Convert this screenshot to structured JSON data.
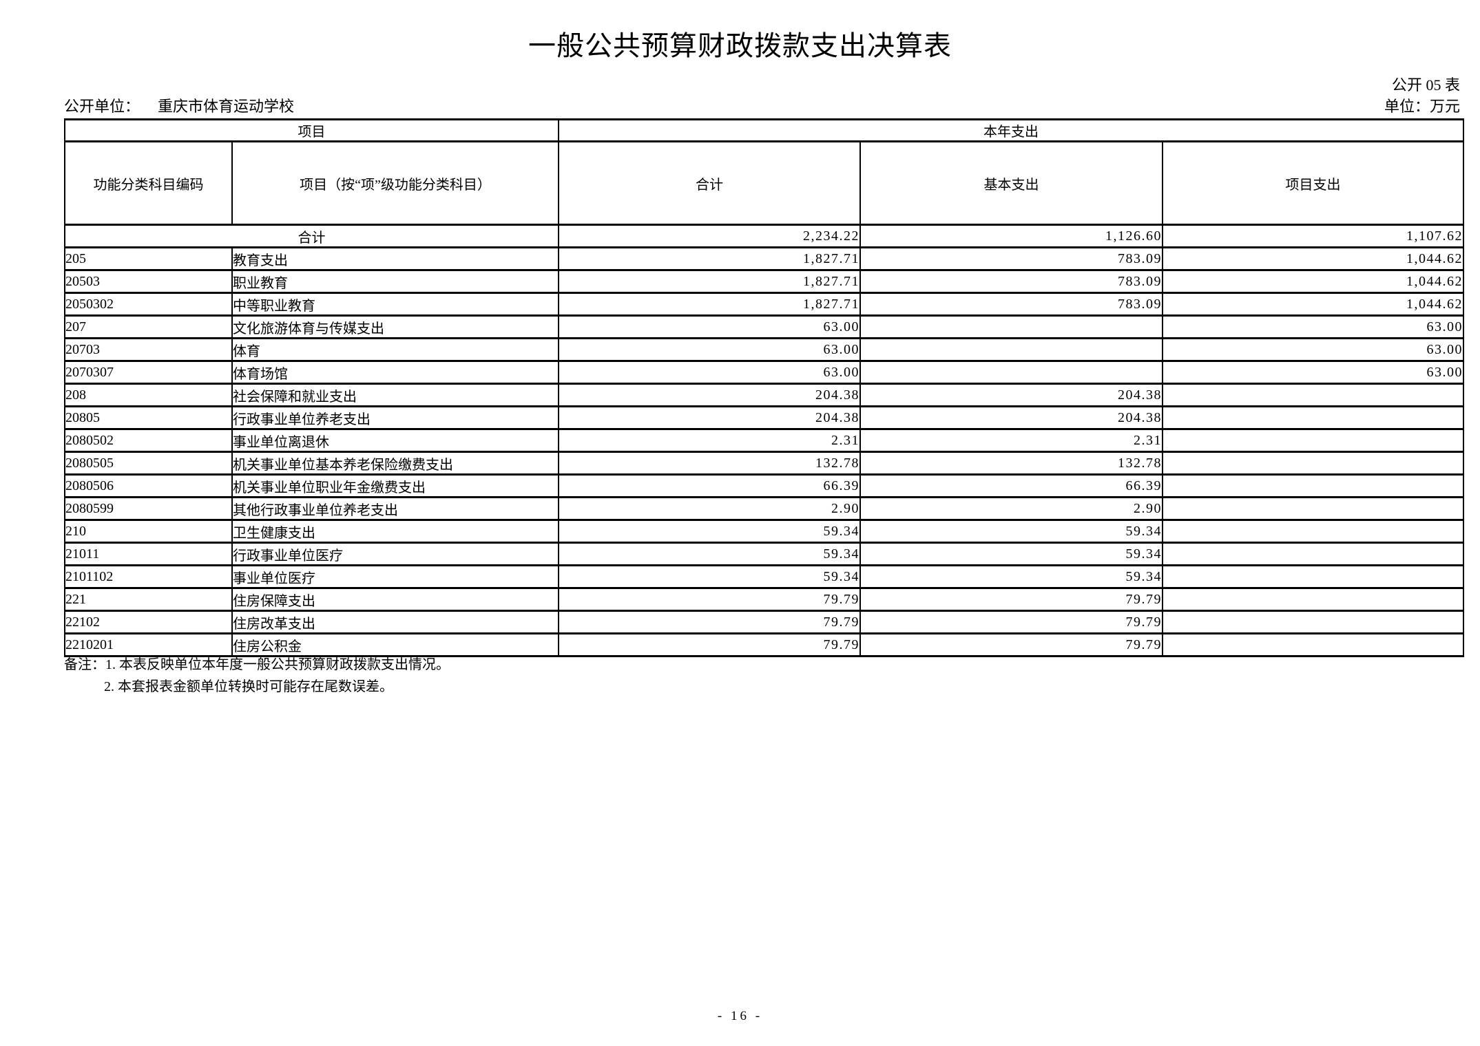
{
  "page": {
    "title": "一般公共预算财政拨款支出决算表",
    "form_code": "公开 05 表",
    "org_label": "公开单位：",
    "org_name": "重庆市体育运动学校",
    "unit_label": "单位：万元",
    "page_number": "- 16 -"
  },
  "table": {
    "header": {
      "group_left": "项目",
      "group_right": "本年支出",
      "col_code": "功能分类科目编码",
      "col_item": "项目（按“项”级功能分类科目）",
      "col_total": "合计",
      "col_basic": "基本支出",
      "col_project": "项目支出"
    },
    "rows": [
      {
        "merged": true,
        "code": "",
        "name": "合计",
        "total": "2,234.22",
        "basic": "1,126.60",
        "project": "1,107.62"
      },
      {
        "merged": false,
        "code": "205",
        "name": "教育支出",
        "total": "1,827.71",
        "basic": "783.09",
        "project": "1,044.62"
      },
      {
        "merged": false,
        "code": "20503",
        "name": "职业教育",
        "total": "1,827.71",
        "basic": "783.09",
        "project": "1,044.62"
      },
      {
        "merged": false,
        "code": "2050302",
        "name": "中等职业教育",
        "total": "1,827.71",
        "basic": "783.09",
        "project": "1,044.62"
      },
      {
        "merged": false,
        "code": "207",
        "name": "文化旅游体育与传媒支出",
        "total": "63.00",
        "basic": "",
        "project": "63.00"
      },
      {
        "merged": false,
        "code": "20703",
        "name": "体育",
        "total": "63.00",
        "basic": "",
        "project": "63.00"
      },
      {
        "merged": false,
        "code": "2070307",
        "name": "体育场馆",
        "total": "63.00",
        "basic": "",
        "project": "63.00"
      },
      {
        "merged": false,
        "code": "208",
        "name": "社会保障和就业支出",
        "total": "204.38",
        "basic": "204.38",
        "project": ""
      },
      {
        "merged": false,
        "code": "20805",
        "name": "行政事业单位养老支出",
        "total": "204.38",
        "basic": "204.38",
        "project": ""
      },
      {
        "merged": false,
        "code": "2080502",
        "name": "事业单位离退休",
        "total": "2.31",
        "basic": "2.31",
        "project": ""
      },
      {
        "merged": false,
        "code": "2080505",
        "name": "机关事业单位基本养老保险缴费支出",
        "total": "132.78",
        "basic": "132.78",
        "project": ""
      },
      {
        "merged": false,
        "code": "2080506",
        "name": "机关事业单位职业年金缴费支出",
        "total": "66.39",
        "basic": "66.39",
        "project": ""
      },
      {
        "merged": false,
        "code": "2080599",
        "name": "其他行政事业单位养老支出",
        "total": "2.90",
        "basic": "2.90",
        "project": ""
      },
      {
        "merged": false,
        "code": "210",
        "name": "卫生健康支出",
        "total": "59.34",
        "basic": "59.34",
        "project": ""
      },
      {
        "merged": false,
        "code": "21011",
        "name": "行政事业单位医疗",
        "total": "59.34",
        "basic": "59.34",
        "project": ""
      },
      {
        "merged": false,
        "code": "2101102",
        "name": "事业单位医疗",
        "total": "59.34",
        "basic": "59.34",
        "project": ""
      },
      {
        "merged": false,
        "code": "221",
        "name": "住房保障支出",
        "total": "79.79",
        "basic": "79.79",
        "project": ""
      },
      {
        "merged": false,
        "code": "22102",
        "name": "住房改革支出",
        "total": "79.79",
        "basic": "79.79",
        "project": ""
      },
      {
        "merged": false,
        "code": "2210201",
        "name": "住房公积金",
        "total": "79.79",
        "basic": "79.79",
        "project": ""
      }
    ]
  },
  "notes": {
    "label": "备注：",
    "line1": "1. 本表反映单位本年度一般公共预算财政拨款支出情况。",
    "line2": "2. 本套报表金额单位转换时可能存在尾数误差。"
  }
}
